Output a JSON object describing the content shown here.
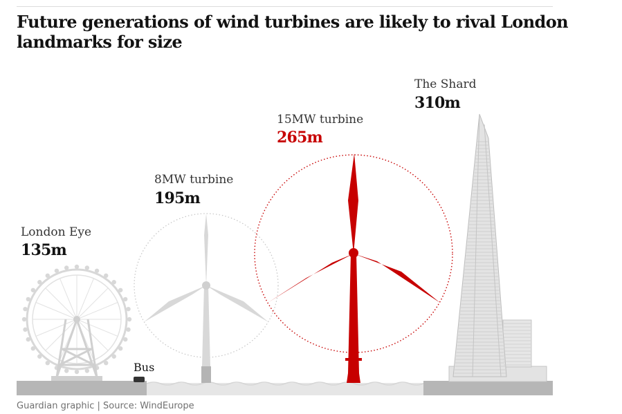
{
  "title": "Future generations of wind turbines are likely to rival London landmarks for size",
  "footer": "Guardian graphic | Source: WindEurope",
  "colors": {
    "highlight": "#c70000",
    "structure": "#d8d8d8",
    "ground": "#b6b6b6",
    "water": "#e6e6e6"
  },
  "items": {
    "london_eye": {
      "name": "London Eye",
      "height": "135m"
    },
    "turbine_8mw": {
      "name": "8MW turbine",
      "height": "195m"
    },
    "turbine_15mw": {
      "name": "15MW turbine",
      "height": "265m"
    },
    "shard": {
      "name": "The Shard",
      "height": "310m"
    },
    "bus": {
      "name": "Bus"
    }
  }
}
